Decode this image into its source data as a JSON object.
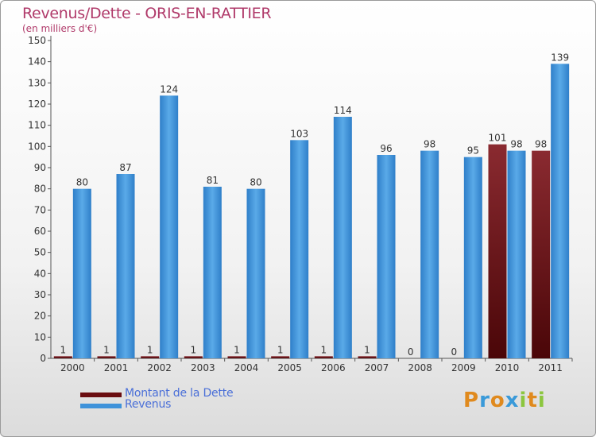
{
  "title": "Revenus/Dette - ORIS-EN-RATTIER",
  "subtitle": "(en milliers d'€)",
  "colors": {
    "debt": "#7a1e24",
    "revenue": "#3e92da",
    "title": "#b03a6a",
    "legend_text": "#4a6fd8"
  },
  "legend": [
    {
      "label": "Montant de la Dette",
      "color": "#6a0d10"
    },
    {
      "label": "Revenus",
      "color": "#3e92da"
    }
  ],
  "logo": {
    "letters": [
      "P",
      "r",
      "o",
      "x",
      "i",
      "t",
      "i"
    ],
    "colors": [
      "#e08a1e",
      "#3a9ad9",
      "#e08a1e",
      "#3a9ad9",
      "#8cc63f",
      "#e08a1e",
      "#8cc63f"
    ]
  },
  "chart_data": {
    "type": "bar",
    "categories": [
      "2000",
      "2001",
      "2002",
      "2003",
      "2004",
      "2005",
      "2006",
      "2007",
      "2008",
      "2009",
      "2010",
      "2011"
    ],
    "series": [
      {
        "name": "Montant de la Dette",
        "values": [
          1,
          1,
          1,
          1,
          1,
          1,
          1,
          1,
          0,
          0,
          101,
          98
        ]
      },
      {
        "name": "Revenus",
        "values": [
          80,
          87,
          124,
          81,
          80,
          103,
          114,
          96,
          98,
          95,
          98,
          139
        ]
      }
    ],
    "ylim": [
      0,
      150
    ],
    "yticks": [
      0,
      10,
      20,
      30,
      40,
      50,
      60,
      70,
      80,
      90,
      100,
      110,
      120,
      130,
      140,
      150
    ],
    "grid": false,
    "legend_position": "bottom-left"
  }
}
